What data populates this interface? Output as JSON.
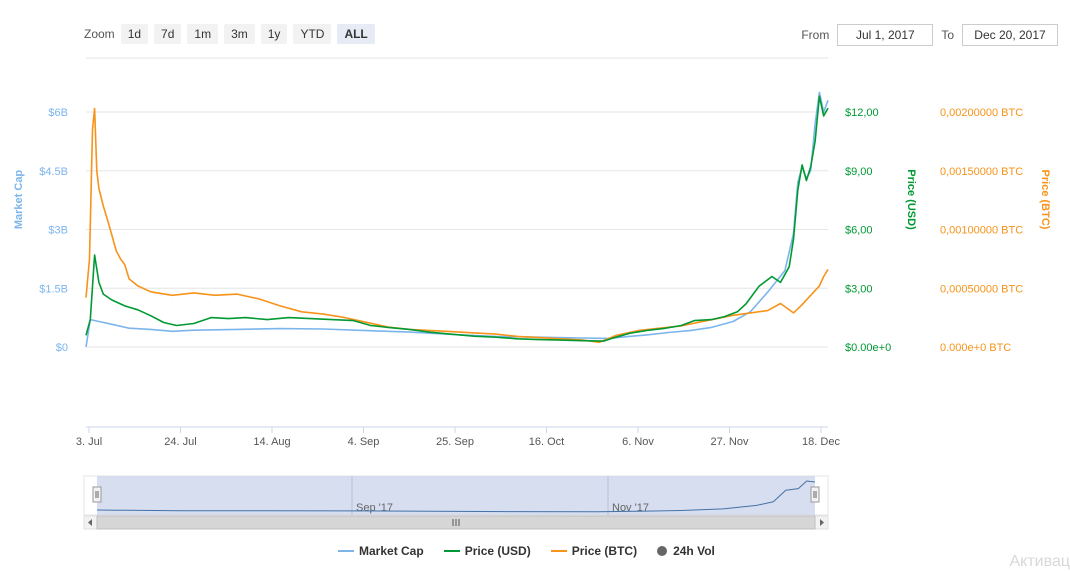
{
  "zoom": {
    "label": "Zoom",
    "buttons": [
      "1d",
      "7d",
      "1m",
      "3m",
      "1y",
      "YTD",
      "ALL"
    ],
    "active": "ALL"
  },
  "range": {
    "from_label": "From",
    "from_value": "Jul 1, 2017",
    "to_label": "To",
    "to_value": "Dec 20, 2017"
  },
  "legend": {
    "market_cap": "Market Cap",
    "price_usd": "Price (USD)",
    "price_btc": "Price (BTC)",
    "volume": "24h Vol"
  },
  "watermark": "Активац",
  "colors": {
    "market_cap": "#7cb5ec",
    "price_usd": "#009933",
    "price_btc": "#f7931a",
    "navigator_fill": "#ccd6eb"
  },
  "chart_data": {
    "type": "line",
    "x_tick_labels": [
      "3. Jul",
      "24. Jul",
      "14. Aug",
      "4. Sep",
      "25. Sep",
      "16. Oct",
      "6. Nov",
      "27. Nov",
      "18. Dec"
    ],
    "navigator_labels": [
      "Sep '17",
      "Nov '17"
    ],
    "axes": {
      "market_cap": {
        "title": "Market Cap",
        "ticks": [
          "$0",
          "$1.5B",
          "$3B",
          "$4.5B",
          "$6B"
        ],
        "range": [
          0,
          6000000000
        ]
      },
      "price_usd": {
        "title": "Price (USD)",
        "ticks": [
          "$0.00e+0",
          "$3,00",
          "$6,00",
          "$9,00",
          "$12,00"
        ],
        "range": [
          0,
          12
        ]
      },
      "price_btc": {
        "title": "Price (BTC)",
        "ticks": [
          "0.000e+0 BTC",
          "0,00050000 BTC",
          "0,00100000 BTC",
          "0,00150000 BTC",
          "0,00200000 BTC"
        ],
        "range": [
          0,
          0.002
        ]
      }
    },
    "x_days_range": [
      0,
      172
    ],
    "series": [
      {
        "name": "Price (USD)",
        "axis": "price_usd",
        "points": [
          [
            0,
            0.6
          ],
          [
            1,
            1.4
          ],
          [
            2,
            4.7
          ],
          [
            3,
            3.3
          ],
          [
            4,
            2.7
          ],
          [
            6,
            2.4
          ],
          [
            9,
            2.1
          ],
          [
            12,
            1.9
          ],
          [
            15,
            1.6
          ],
          [
            18,
            1.25
          ],
          [
            21,
            1.1
          ],
          [
            25,
            1.2
          ],
          [
            29,
            1.5
          ],
          [
            33,
            1.45
          ],
          [
            37,
            1.5
          ],
          [
            42,
            1.4
          ],
          [
            47,
            1.5
          ],
          [
            52,
            1.45
          ],
          [
            57,
            1.4
          ],
          [
            62,
            1.35
          ],
          [
            66,
            1.1
          ],
          [
            70,
            1.0
          ],
          [
            75,
            0.9
          ],
          [
            80,
            0.75
          ],
          [
            85,
            0.65
          ],
          [
            90,
            0.55
          ],
          [
            95,
            0.5
          ],
          [
            100,
            0.42
          ],
          [
            105,
            0.38
          ],
          [
            110,
            0.35
          ],
          [
            115,
            0.32
          ],
          [
            120,
            0.3
          ],
          [
            122,
            0.45
          ],
          [
            126,
            0.7
          ],
          [
            130,
            0.85
          ],
          [
            134,
            0.95
          ],
          [
            138,
            1.1
          ],
          [
            141,
            1.35
          ],
          [
            145,
            1.4
          ],
          [
            148,
            1.55
          ],
          [
            151,
            1.8
          ],
          [
            153,
            2.2
          ],
          [
            156,
            3.1
          ],
          [
            159,
            3.6
          ],
          [
            161,
            3.3
          ],
          [
            163,
            4.1
          ],
          [
            164,
            5.5
          ],
          [
            165,
            8.0
          ],
          [
            166,
            9.3
          ],
          [
            167,
            8.5
          ],
          [
            168,
            9.2
          ],
          [
            169,
            10.5
          ],
          [
            170,
            12.8
          ],
          [
            171,
            11.8
          ],
          [
            172,
            12.2
          ]
        ]
      },
      {
        "name": "Market Cap",
        "axis": "market_cap",
        "points": [
          [
            0,
            0
          ],
          [
            1,
            700000000
          ],
          [
            3,
            650000000
          ],
          [
            6,
            580000000
          ],
          [
            10,
            480000000
          ],
          [
            15,
            450000000
          ],
          [
            20,
            400000000
          ],
          [
            25,
            430000000
          ],
          [
            35,
            450000000
          ],
          [
            45,
            470000000
          ],
          [
            55,
            460000000
          ],
          [
            65,
            420000000
          ],
          [
            75,
            380000000
          ],
          [
            85,
            320000000
          ],
          [
            95,
            270000000
          ],
          [
            105,
            250000000
          ],
          [
            115,
            230000000
          ],
          [
            121,
            220000000
          ],
          [
            125,
            260000000
          ],
          [
            130,
            310000000
          ],
          [
            135,
            370000000
          ],
          [
            140,
            420000000
          ],
          [
            145,
            500000000
          ],
          [
            150,
            650000000
          ],
          [
            154,
            900000000
          ],
          [
            158,
            1400000000
          ],
          [
            162,
            1950000000
          ],
          [
            164,
            2900000000
          ],
          [
            165,
            4200000000
          ],
          [
            166,
            4600000000
          ],
          [
            167,
            4300000000
          ],
          [
            168,
            4500000000
          ],
          [
            169,
            5700000000
          ],
          [
            170,
            6500000000
          ],
          [
            171,
            6000000000
          ],
          [
            172,
            6300000000
          ]
        ]
      },
      {
        "name": "Price (BTC)",
        "axis": "price_btc",
        "points": [
          [
            0,
            0.00042
          ],
          [
            0.8,
            0.00075
          ],
          [
            1.5,
            0.00185
          ],
          [
            2,
            0.00203
          ],
          [
            2.5,
            0.0015
          ],
          [
            3,
            0.00135
          ],
          [
            4,
            0.0012
          ],
          [
            5,
            0.00108
          ],
          [
            6,
            0.00095
          ],
          [
            7,
            0.00082
          ],
          [
            8,
            0.00075
          ],
          [
            9,
            0.0007
          ],
          [
            10,
            0.00058
          ],
          [
            12,
            0.00052
          ],
          [
            15,
            0.00047
          ],
          [
            20,
            0.00044
          ],
          [
            25,
            0.00046
          ],
          [
            30,
            0.00044
          ],
          [
            35,
            0.00045
          ],
          [
            40,
            0.00041
          ],
          [
            45,
            0.00035
          ],
          [
            50,
            0.0003
          ],
          [
            55,
            0.00028
          ],
          [
            60,
            0.00025
          ],
          [
            65,
            0.00021
          ],
          [
            70,
            0.00017
          ],
          [
            75,
            0.00015
          ],
          [
            80,
            0.00014
          ],
          [
            85,
            0.00013
          ],
          [
            90,
            0.00012
          ],
          [
            95,
            0.00011
          ],
          [
            100,
            9e-05
          ],
          [
            105,
            8e-05
          ],
          [
            110,
            7e-05
          ],
          [
            115,
            6e-05
          ],
          [
            119,
            4e-05
          ],
          [
            123,
            0.0001
          ],
          [
            128,
            0.00014
          ],
          [
            133,
            0.00016
          ],
          [
            138,
            0.00018
          ],
          [
            142,
            0.00021
          ],
          [
            146,
            0.00024
          ],
          [
            150,
            0.00027
          ],
          [
            154,
            0.00029
          ],
          [
            158,
            0.00031
          ],
          [
            161,
            0.00037
          ],
          [
            164,
            0.00029
          ],
          [
            166,
            0.00036
          ],
          [
            168,
            0.00044
          ],
          [
            170,
            0.00052
          ],
          [
            171,
            0.0006
          ],
          [
            172,
            0.00066
          ]
        ]
      }
    ],
    "navigator_series": {
      "name": "Market Cap",
      "points": [
        [
          0,
          0.6
        ],
        [
          5,
          0.55
        ],
        [
          20,
          0.45
        ],
        [
          40,
          0.45
        ],
        [
          60,
          0.42
        ],
        [
          80,
          0.35
        ],
        [
          100,
          0.28
        ],
        [
          120,
          0.25
        ],
        [
          130,
          0.35
        ],
        [
          140,
          0.5
        ],
        [
          150,
          0.8
        ],
        [
          158,
          1.5
        ],
        [
          162,
          2.2
        ],
        [
          165,
          4.5
        ],
        [
          168,
          4.8
        ],
        [
          170,
          6.3
        ],
        [
          172,
          6.1
        ]
      ]
    }
  }
}
